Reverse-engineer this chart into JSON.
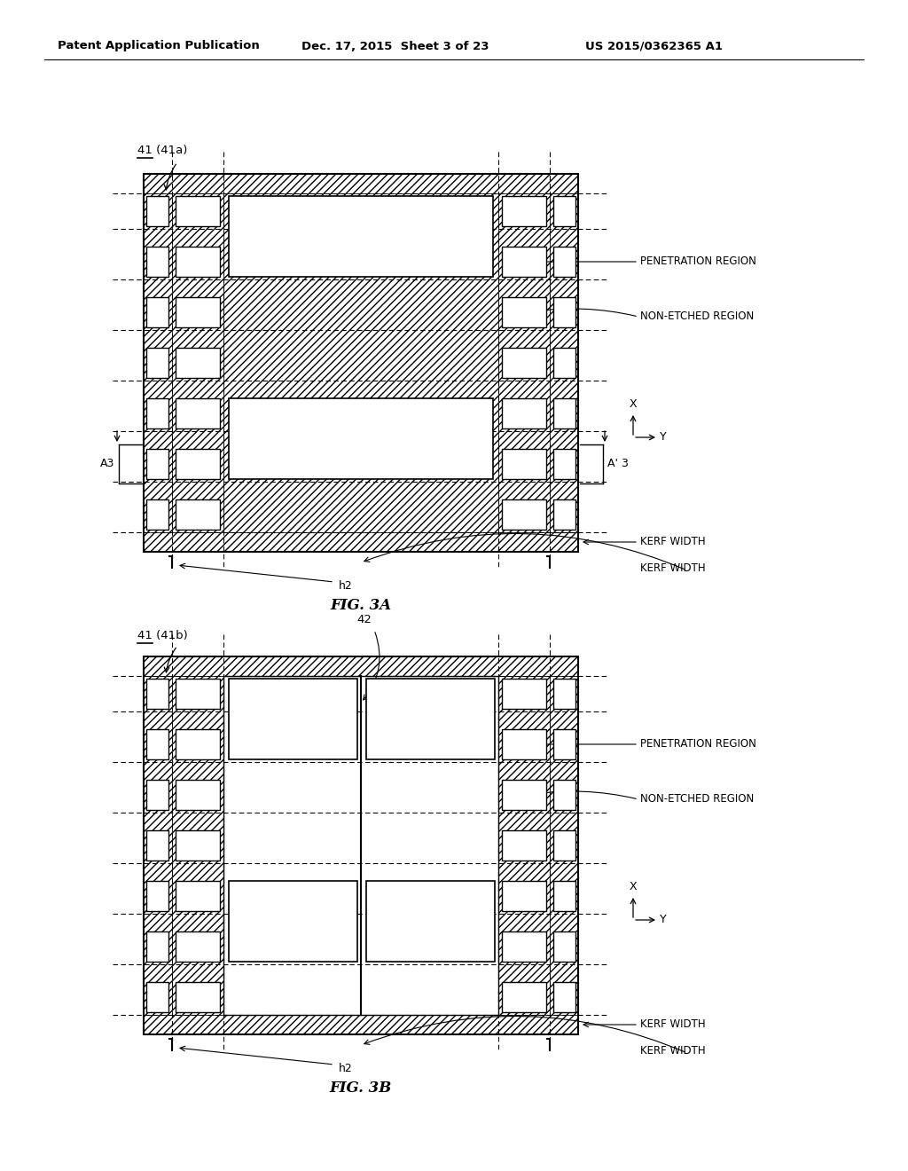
{
  "header_left": "Patent Application Publication",
  "header_mid": "Dec. 17, 2015  Sheet 3 of 23",
  "header_right": "US 2015/0362365 A1",
  "fig_a_label": "FIG. 3A",
  "fig_b_label": "FIG. 3B",
  "label_41a": "41 (41a)",
  "label_41b": "41 (41b)",
  "label_42": "42",
  "label_A3": "A3",
  "label_Ap3": "A’ 3",
  "label_penetration": "PENETRATION REGION",
  "label_non_etched": "NON-ETCHED REGION",
  "label_kerf": "KERF WIDTH",
  "label_h2": "h2",
  "bg_color": "#ffffff",
  "line_color": "#000000"
}
